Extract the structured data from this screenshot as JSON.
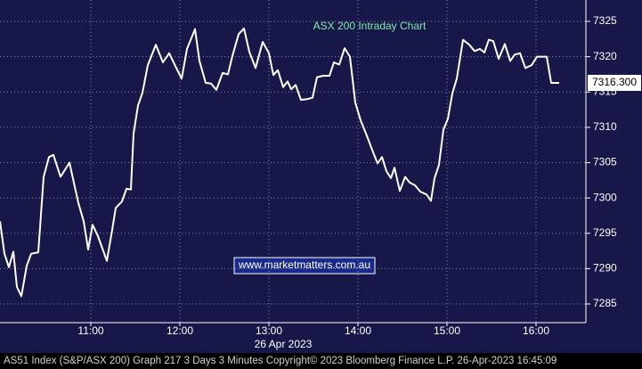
{
  "chart_data": {
    "type": "line",
    "title": "ASX 200 Intraday Chart",
    "watermark": "www.marketmatters.com.au",
    "x_axis_date": "26 Apr 2023",
    "footer": "AS51 Index (S&P/ASX 200) Graph 217 3 Days 3 Minutes  Copyright© 2023 Bloomberg Finance L.P.  26-Apr-2023 16:45:09",
    "last_value_label": "7316.300",
    "grid": true,
    "xlim": [
      9.98,
      16.56
    ],
    "ylim": [
      7282.35,
      7328.03
    ],
    "xticks": [
      {
        "value": 11,
        "label": "11:00"
      },
      {
        "value": 12,
        "label": "12:00"
      },
      {
        "value": 13,
        "label": "13:00"
      },
      {
        "value": 14,
        "label": "14:00"
      },
      {
        "value": 15,
        "label": "15:00"
      },
      {
        "value": 16,
        "label": "16:00"
      }
    ],
    "yticks": [
      7285,
      7290,
      7295,
      7300,
      7305,
      7310,
      7315,
      7320,
      7325
    ],
    "x": [
      9.98,
      10.03,
      10.08,
      10.13,
      10.17,
      10.22,
      10.28,
      10.33,
      10.41,
      10.47,
      10.53,
      10.58,
      10.66,
      10.76,
      10.86,
      10.92,
      10.97,
      11.02,
      11.08,
      11.18,
      11.24,
      11.28,
      11.35,
      11.4,
      11.45,
      11.48,
      11.53,
      11.58,
      11.64,
      11.73,
      11.81,
      11.88,
      11.96,
      12.02,
      12.08,
      12.17,
      12.22,
      12.29,
      12.35,
      12.41,
      12.48,
      12.54,
      12.59,
      12.66,
      12.72,
      12.78,
      12.85,
      12.93,
      13.0,
      13.05,
      13.1,
      13.16,
      13.21,
      13.25,
      13.3,
      13.36,
      13.43,
      13.49,
      13.54,
      13.61,
      13.68,
      13.73,
      13.79,
      13.85,
      13.91,
      13.97,
      14.03,
      14.1,
      14.16,
      14.22,
      14.27,
      14.32,
      14.37,
      14.41,
      14.47,
      14.53,
      14.58,
      14.64,
      14.7,
      14.77,
      14.82,
      14.86,
      14.91,
      14.96,
      15.01,
      15.06,
      15.11,
      15.18,
      15.25,
      15.31,
      15.37,
      15.42,
      15.47,
      15.52,
      15.58,
      15.65,
      15.71,
      15.76,
      15.82,
      15.88,
      15.95,
      16.01,
      16.12,
      16.17,
      16.26
    ],
    "series": [
      {
        "color": "#ffffff",
        "values": [
          7296.7,
          7292.1,
          7290.2,
          7292.4,
          7287.4,
          7286.1,
          7290.4,
          7292.1,
          7292.3,
          7303.0,
          7305.8,
          7306.1,
          7303.0,
          7305.0,
          7299.3,
          7296.7,
          7292.7,
          7296.2,
          7294.6,
          7291.1,
          7295.5,
          7298.6,
          7299.5,
          7301.3,
          7301.2,
          7309.1,
          7313.1,
          7314.9,
          7318.8,
          7321.7,
          7319.2,
          7320.5,
          7318.4,
          7316.9,
          7321.1,
          7323.9,
          7319.4,
          7316.3,
          7316.2,
          7315.3,
          7317.7,
          7317.5,
          7320.1,
          7323.2,
          7324.0,
          7320.7,
          7318.4,
          7322.1,
          7320.5,
          7317.4,
          7318.1,
          7315.7,
          7316.5,
          7315.4,
          7316.0,
          7313.9,
          7314.0,
          7314.2,
          7317.1,
          7317.3,
          7317.3,
          7319.2,
          7318.9,
          7321.2,
          7320.0,
          7313.5,
          7311.0,
          7308.8,
          7306.8,
          7304.9,
          7305.8,
          7303.8,
          7302.8,
          7304.3,
          7301.0,
          7303.0,
          7302.2,
          7301.8,
          7300.9,
          7300.5,
          7299.6,
          7302.8,
          7304.7,
          7309.7,
          7311.2,
          7314.8,
          7316.9,
          7322.4,
          7321.7,
          7320.8,
          7321.1,
          7320.6,
          7322.4,
          7322.2,
          7319.7,
          7321.8,
          7319.4,
          7320.3,
          7320.5,
          7318.4,
          7318.8,
          7320.0,
          7320.0,
          7316.3,
          7316.3
        ]
      }
    ]
  }
}
